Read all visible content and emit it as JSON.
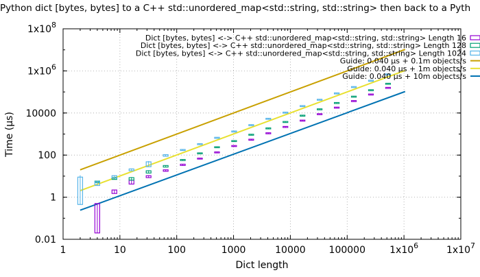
{
  "chart_data": {
    "type": "line",
    "title": "Python dict [bytes, bytes] to a C++ std::unordered_map<std::string, std::string> then back to a Pyth",
    "xlabel": "Dict length",
    "ylabel": "Time (µs)",
    "xscale": "log",
    "yscale": "log",
    "xlim": [
      1,
      10000000
    ],
    "ylim": [
      0.01,
      100000000
    ],
    "grid": true,
    "legend_position": "top-right",
    "x_ticks": [
      {
        "value": 1,
        "label": "1"
      },
      {
        "value": 10,
        "label": "10"
      },
      {
        "value": 100,
        "label": "100"
      },
      {
        "value": 1000,
        "label": "1000"
      },
      {
        "value": 10000,
        "label": "10000"
      },
      {
        "value": 100000,
        "label": "100000"
      },
      {
        "value": 1000000,
        "label": "1x10",
        "sup": "6"
      },
      {
        "value": 10000000,
        "label": "1x10",
        "sup": "7"
      }
    ],
    "y_ticks": [
      {
        "value": 0.01,
        "label": "0.01"
      },
      {
        "value": 1,
        "label": "1"
      },
      {
        "value": 100,
        "label": "100"
      },
      {
        "value": 10000,
        "label": "10000"
      },
      {
        "value": 1000000,
        "label": "1x10",
        "sup": "6"
      },
      {
        "value": 100000000,
        "label": "1x10",
        "sup": "8"
      }
    ],
    "candlestick_series": [
      {
        "name": "Dict [bytes, bytes] <-> C++ std::unordered_map<std::string, std::string> Length 16",
        "color": "#9400d3",
        "points": [
          {
            "x": 4,
            "low": 0.02,
            "q1": 0.02,
            "q3": 0.5,
            "high": 0.5
          },
          {
            "x": 8,
            "low": 1.5,
            "q1": 1.5,
            "q3": 2.2,
            "high": 2.3
          },
          {
            "x": 16,
            "low": 4.2,
            "q1": 4.2,
            "q3": 6.5,
            "high": 6.8
          },
          {
            "x": 32,
            "low": 8.5,
            "q1": 8.5,
            "q3": 10.5,
            "high": 11
          },
          {
            "x": 64,
            "low": 17,
            "q1": 17,
            "q3": 20,
            "high": 20
          },
          {
            "x": 128,
            "low": 32,
            "q1": 32,
            "q3": 37,
            "high": 37
          },
          {
            "x": 256,
            "low": 65,
            "q1": 65,
            "q3": 72,
            "high": 72
          },
          {
            "x": 512,
            "low": 130,
            "q1": 130,
            "q3": 142,
            "high": 142
          },
          {
            "x": 1024,
            "low": 260,
            "q1": 260,
            "q3": 285,
            "high": 285
          },
          {
            "x": 2048,
            "low": 520,
            "q1": 520,
            "q3": 570,
            "high": 570
          },
          {
            "x": 4096,
            "low": 1050,
            "q1": 1050,
            "q3": 1150,
            "high": 1150
          },
          {
            "x": 8192,
            "low": 2100,
            "q1": 2100,
            "q3": 2300,
            "high": 2300
          },
          {
            "x": 16384,
            "low": 4200,
            "q1": 4200,
            "q3": 4600,
            "high": 4600
          },
          {
            "x": 32768,
            "low": 8600,
            "q1": 8600,
            "q3": 9300,
            "high": 9300
          },
          {
            "x": 65536,
            "low": 17500,
            "q1": 17500,
            "q3": 19000,
            "high": 19000
          },
          {
            "x": 131072,
            "low": 36000,
            "q1": 36000,
            "q3": 39000,
            "high": 39000
          },
          {
            "x": 262144,
            "low": 75000,
            "q1": 75000,
            "q3": 80000,
            "high": 80000
          },
          {
            "x": 524288,
            "low": 155000,
            "q1": 155000,
            "q3": 165000,
            "high": 165000
          }
        ]
      },
      {
        "name": "Dict [bytes, bytes] <-> C++ std::unordered_map<std::string, std::string> Length 128",
        "color": "#009e73",
        "points": [
          {
            "x": 4,
            "low": 5,
            "q1": 5,
            "q3": 5.8,
            "high": 6
          },
          {
            "x": 8,
            "low": 7,
            "q1": 7,
            "q3": 8.5,
            "high": 9
          },
          {
            "x": 16,
            "low": 6.5,
            "q1": 6.5,
            "q3": 8.5,
            "high": 9
          },
          {
            "x": 32,
            "low": 14,
            "q1": 14,
            "q3": 18,
            "high": 19
          },
          {
            "x": 64,
            "low": 27,
            "q1": 27,
            "q3": 32,
            "high": 33
          },
          {
            "x": 128,
            "low": 55,
            "q1": 55,
            "q3": 62,
            "high": 62
          },
          {
            "x": 256,
            "low": 115,
            "q1": 115,
            "q3": 128,
            "high": 128
          },
          {
            "x": 512,
            "low": 230,
            "q1": 230,
            "q3": 250,
            "high": 250
          },
          {
            "x": 1024,
            "low": 450,
            "q1": 450,
            "q3": 490,
            "high": 490
          },
          {
            "x": 2048,
            "low": 900,
            "q1": 900,
            "q3": 980,
            "high": 980
          },
          {
            "x": 4096,
            "low": 1800,
            "q1": 1800,
            "q3": 1960,
            "high": 1960
          },
          {
            "x": 8192,
            "low": 3600,
            "q1": 3600,
            "q3": 3950,
            "high": 3950
          },
          {
            "x": 16384,
            "low": 7200,
            "q1": 7200,
            "q3": 7900,
            "high": 7900
          },
          {
            "x": 32768,
            "low": 14500,
            "q1": 14500,
            "q3": 15800,
            "high": 15800
          },
          {
            "x": 65536,
            "low": 29000,
            "q1": 29000,
            "q3": 31500,
            "high": 31500
          },
          {
            "x": 131072,
            "low": 58000,
            "q1": 58000,
            "q3": 63000,
            "high": 63000
          },
          {
            "x": 262144,
            "low": 118000,
            "q1": 118000,
            "q3": 128000,
            "high": 128000
          },
          {
            "x": 524288,
            "low": 240000,
            "q1": 240000,
            "q3": 258000,
            "high": 258000
          }
        ]
      },
      {
        "name": "Dict [bytes, bytes] <-> C++ std::unordered_map<std::string, std::string> Length 1024",
        "color": "#56b4e9",
        "points": [
          {
            "x": 2,
            "low": 0.45,
            "q1": 0.45,
            "q3": 9,
            "high": 11
          },
          {
            "x": 4,
            "low": 3.6,
            "q1": 3.6,
            "q3": 5.5,
            "high": 6
          },
          {
            "x": 8,
            "low": 8,
            "q1": 8,
            "q3": 10.5,
            "high": 11
          },
          {
            "x": 16,
            "low": 18,
            "q1": 18,
            "q3": 22,
            "high": 23
          },
          {
            "x": 32,
            "low": 28,
            "q1": 28,
            "q3": 48,
            "high": 52
          },
          {
            "x": 64,
            "low": 88,
            "q1": 88,
            "q3": 105,
            "high": 105
          },
          {
            "x": 128,
            "low": 165,
            "q1": 165,
            "q3": 185,
            "high": 185
          },
          {
            "x": 256,
            "low": 320,
            "q1": 320,
            "q3": 350,
            "high": 350
          },
          {
            "x": 512,
            "low": 650,
            "q1": 650,
            "q3": 700,
            "high": 700
          },
          {
            "x": 1024,
            "low": 1300,
            "q1": 1300,
            "q3": 1400,
            "high": 1400
          },
          {
            "x": 2048,
            "low": 2600,
            "q1": 2600,
            "q3": 2800,
            "high": 2800
          },
          {
            "x": 4096,
            "low": 5200,
            "q1": 5200,
            "q3": 5600,
            "high": 5600
          },
          {
            "x": 8192,
            "low": 10000,
            "q1": 10000,
            "q3": 11000,
            "high": 11000
          },
          {
            "x": 16384,
            "low": 21000,
            "q1": 21000,
            "q3": 22500,
            "high": 22500
          },
          {
            "x": 32768,
            "low": 42000,
            "q1": 42000,
            "q3": 45000,
            "high": 45000
          },
          {
            "x": 65536,
            "low": 85000,
            "q1": 85000,
            "q3": 90000,
            "high": 90000
          },
          {
            "x": 131072,
            "low": 170000,
            "q1": 170000,
            "q3": 180000,
            "high": 180000
          },
          {
            "x": 262144,
            "low": 340000,
            "q1": 340000,
            "q3": 360000,
            "high": 360000
          },
          {
            "x": 524288,
            "low": 680000,
            "q1": 680000,
            "q3": 720000,
            "high": 720000
          }
        ]
      }
    ],
    "series": [
      {
        "name": "Guide: 0.040 µs + 0.1m objects/s",
        "color": "#c8a000",
        "x": [
          2,
          1048576
        ],
        "y": [
          20,
          10485760
        ]
      },
      {
        "name": "Guide: 0.040 µs + 1m objects/s",
        "color": "#e8e030",
        "x": [
          2,
          1048576
        ],
        "y": [
          2.04,
          1048576
        ]
      },
      {
        "name": "Guide: 0.040 µs + 10m objects/s",
        "color": "#0072b2",
        "x": [
          2,
          1048576
        ],
        "y": [
          0.24,
          104858
        ]
      }
    ]
  }
}
